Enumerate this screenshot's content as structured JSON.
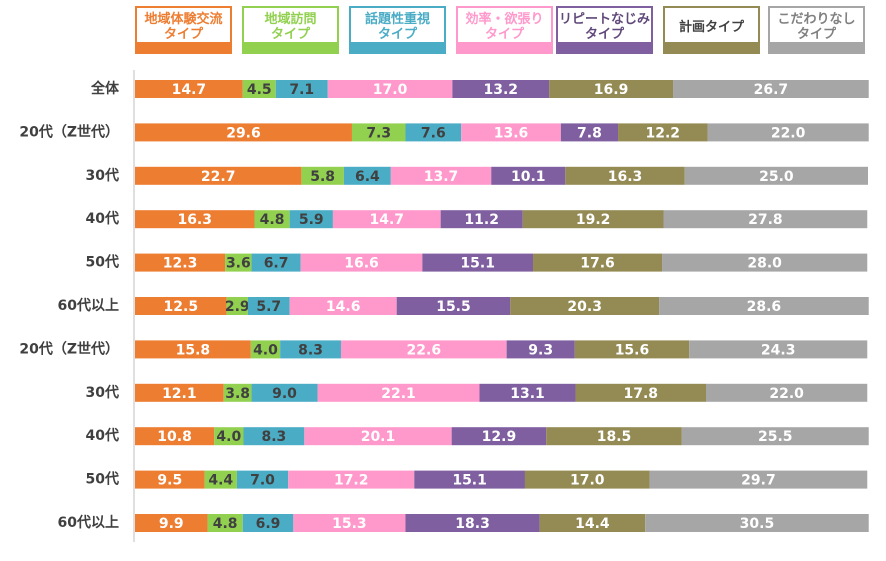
{
  "legend": [
    {
      "label": "地域体験交流\nタイプ",
      "color": "#ED7D31",
      "text_color": "#ED7D31"
    },
    {
      "label": "地域訪問\nタイプ",
      "color": "#92D050",
      "text_color": "#92D050"
    },
    {
      "label": "話題性重視\nタイプ",
      "color": "#4BACC6",
      "text_color": "#4BACC6"
    },
    {
      "label": "効率・欲張り\nタイプ",
      "color": "#FF99CC",
      "text_color": "#FF99CC"
    },
    {
      "label": "リピートなじみ\nタイプ",
      "color": "#7F5F9F",
      "text_color": "#60497A"
    },
    {
      "label": "計画タイプ",
      "color": "#948A54",
      "text_color": "#404040"
    },
    {
      "label": "こだわりなし\nタイプ",
      "color": "#A6A6A6",
      "text_color": "#808080"
    }
  ],
  "chart_data": {
    "type": "bar",
    "orientation": "horizontal",
    "stacked": true,
    "categories": [
      "全体",
      "20代（Z世代）",
      "30代",
      "40代",
      "50代",
      "60代以上",
      "20代（Z世代）",
      "30代",
      "40代",
      "50代",
      "60代以上"
    ],
    "series": [
      {
        "name": "地域体験交流タイプ",
        "values": [
          14.7,
          29.6,
          22.7,
          16.3,
          12.3,
          12.5,
          15.8,
          12.1,
          10.8,
          9.5,
          9.9
        ]
      },
      {
        "name": "地域訪問タイプ",
        "values": [
          4.5,
          7.3,
          5.8,
          4.8,
          3.6,
          2.9,
          4.0,
          3.8,
          4.0,
          4.4,
          4.8
        ]
      },
      {
        "name": "話題性重視タイプ",
        "values": [
          7.1,
          7.6,
          6.4,
          5.9,
          6.7,
          5.7,
          8.3,
          9.0,
          8.3,
          7.0,
          6.9
        ]
      },
      {
        "name": "効率・欲張りタイプ",
        "values": [
          17.0,
          13.6,
          13.7,
          14.7,
          16.6,
          14.6,
          22.6,
          22.1,
          20.1,
          17.2,
          15.3
        ]
      },
      {
        "name": "リピートなじみタイプ",
        "values": [
          13.2,
          7.8,
          10.1,
          11.2,
          15.1,
          15.5,
          9.3,
          13.1,
          12.9,
          15.1,
          18.3
        ]
      },
      {
        "name": "計画タイプ",
        "values": [
          16.9,
          12.2,
          16.3,
          19.2,
          17.6,
          20.3,
          15.6,
          17.8,
          18.5,
          17.0,
          14.4
        ]
      },
      {
        "name": "こだわりなしタイプ",
        "values": [
          26.7,
          22.0,
          25.0,
          27.8,
          28.0,
          28.6,
          24.3,
          22.0,
          25.5,
          29.7,
          30.5
        ]
      }
    ],
    "label_colors": [
      "#ffffff",
      "#404040",
      "#404040",
      "#ffffff",
      "#ffffff",
      "#ffffff",
      "#ffffff"
    ],
    "xlim": [
      0,
      100
    ],
    "grid": false,
    "legend_position": "top"
  }
}
